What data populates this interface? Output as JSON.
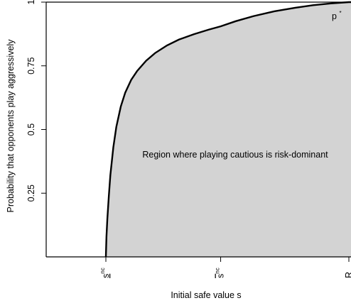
{
  "chart_data": {
    "type": "area",
    "xlabel": "Initial safe value s",
    "ylabel": "Probability that opponents play aggressively",
    "ylim": [
      0,
      1
    ],
    "xlim": [
      0,
      1
    ],
    "x_ticks": [
      {
        "value": 0.185,
        "label": "s",
        "sup": "nc",
        "accent": "underline"
      },
      {
        "value": 0.57,
        "label": "s",
        "sup": "nc",
        "accent": "overline"
      },
      {
        "value": 1.0,
        "label": "R",
        "sup": "",
        "accent": ""
      }
    ],
    "y_ticks": [
      0.25,
      0.5,
      0.75,
      1
    ],
    "y_tick_labels": [
      "0.25",
      "0.5",
      "0.75",
      "1"
    ],
    "annotation_region": "Region where playing cautious is risk-dominant",
    "annotation_point": {
      "label": "p",
      "sup": "*"
    },
    "fill_color": "#d3d3d3",
    "line_color": "#000000",
    "curve": {
      "x": [
        0.185,
        0.187,
        0.19,
        0.195,
        0.2,
        0.21,
        0.22,
        0.235,
        0.25,
        0.27,
        0.29,
        0.32,
        0.35,
        0.39,
        0.43,
        0.48,
        0.53,
        0.57,
        0.62,
        0.68,
        0.75,
        0.82,
        0.88,
        0.94,
        1.0
      ],
      "y": [
        0.0,
        0.08,
        0.15,
        0.24,
        0.32,
        0.43,
        0.51,
        0.59,
        0.645,
        0.695,
        0.73,
        0.77,
        0.8,
        0.83,
        0.853,
        0.874,
        0.892,
        0.905,
        0.925,
        0.945,
        0.964,
        0.978,
        0.988,
        0.995,
        1.0
      ]
    }
  }
}
